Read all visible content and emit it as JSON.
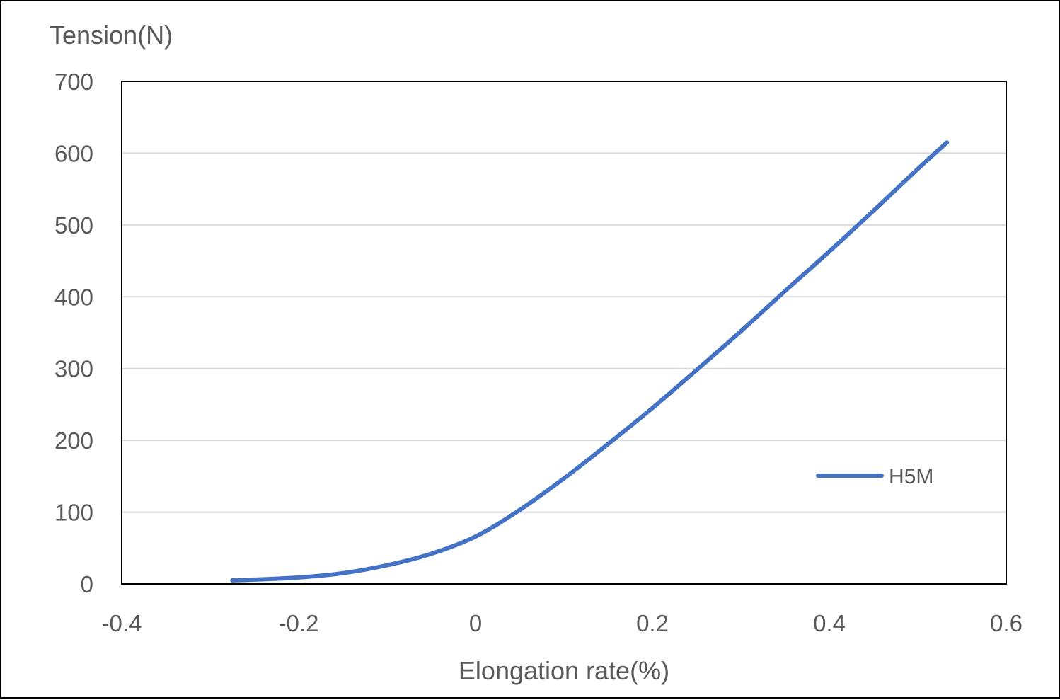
{
  "chart_data": {
    "type": "line",
    "title": "",
    "xlabel": "Elongation rate(%)",
    "ylabel": "Tension(N)",
    "xlim": [
      -0.4,
      0.6
    ],
    "ylim": [
      0,
      700
    ],
    "x_ticks": [
      "-0.4",
      "-0.2",
      "0",
      "0.2",
      "0.4",
      "0.6"
    ],
    "y_ticks": [
      "0",
      "100",
      "200",
      "300",
      "400",
      "500",
      "600",
      "700"
    ],
    "grid": "horizontal",
    "legend_position": "right",
    "series": [
      {
        "name": "H5M",
        "color": "#4472C4",
        "x": [
          -0.275,
          -0.25,
          -0.2,
          -0.15,
          -0.1,
          -0.05,
          0.0,
          0.05,
          0.1,
          0.15,
          0.2,
          0.25,
          0.3,
          0.35,
          0.4,
          0.45,
          0.5,
          0.533
        ],
        "y": [
          5,
          6,
          9,
          15,
          26,
          42,
          66,
          103,
          147,
          195,
          245,
          298,
          352,
          408,
          463,
          520,
          578,
          615
        ]
      }
    ]
  }
}
